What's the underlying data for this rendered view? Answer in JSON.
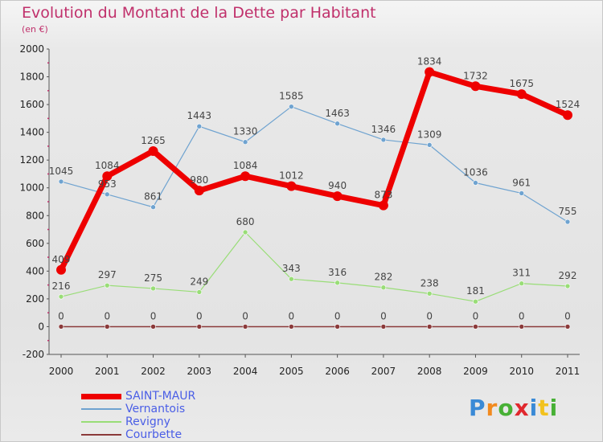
{
  "title": "Evolution du Montant de la Dette par Habitant",
  "subtitle": "(en €)",
  "logo": {
    "text": "Proxiti",
    "letter_colors": [
      "#3a8ad6",
      "#f28a1e",
      "#47b035",
      "#e0282e",
      "#3a8ad6",
      "#f2c21e",
      "#47b035"
    ]
  },
  "chart_data": {
    "type": "line",
    "x": [
      "2000",
      "2001",
      "2002",
      "2003",
      "2004",
      "2005",
      "2006",
      "2007",
      "2008",
      "2009",
      "2010",
      "2011"
    ],
    "ylim": [
      -200,
      2000
    ],
    "yticks": [
      -200,
      0,
      200,
      400,
      600,
      800,
      1000,
      1200,
      1400,
      1600,
      1800,
      2000
    ],
    "grid": false,
    "legend_position": "bottom-left",
    "series": [
      {
        "name": "SAINT-MAUR",
        "color": "#ee0000",
        "values": [
          409,
          1084,
          1265,
          980,
          1084,
          1012,
          940,
          873,
          1834,
          1732,
          1675,
          1524
        ],
        "labels": [
          "409",
          "1084",
          "1265",
          "980",
          "1084",
          "1012",
          "940",
          "873",
          "1834",
          "1732",
          "1675",
          "1524"
        ]
      },
      {
        "name": "Vernantois",
        "color": "#6fa3d0",
        "values": [
          1045,
          953,
          861,
          1443,
          1330,
          1585,
          1463,
          1346,
          1309,
          1036,
          961,
          755
        ],
        "labels": [
          "1045",
          "953",
          "861",
          "1443",
          "1330",
          "1585",
          "1463",
          "1346",
          "1309",
          "1036",
          "961",
          "755"
        ]
      },
      {
        "name": "Revigny",
        "color": "#99dd77",
        "values": [
          216,
          297,
          275,
          249,
          680,
          343,
          316,
          282,
          238,
          181,
          311,
          292
        ],
        "labels": [
          "216",
          "297",
          "275",
          "249",
          "680",
          "343",
          "316",
          "282",
          "238",
          "181",
          "311",
          "292"
        ]
      },
      {
        "name": "Courbette",
        "color": "#8b3a3a",
        "values": [
          0,
          0,
          0,
          0,
          0,
          0,
          0,
          0,
          0,
          0,
          0,
          0
        ],
        "labels": [
          "0",
          "0",
          "0",
          "0",
          "0",
          "0",
          "0",
          "0",
          "0",
          "0",
          "0",
          "0"
        ]
      }
    ]
  }
}
